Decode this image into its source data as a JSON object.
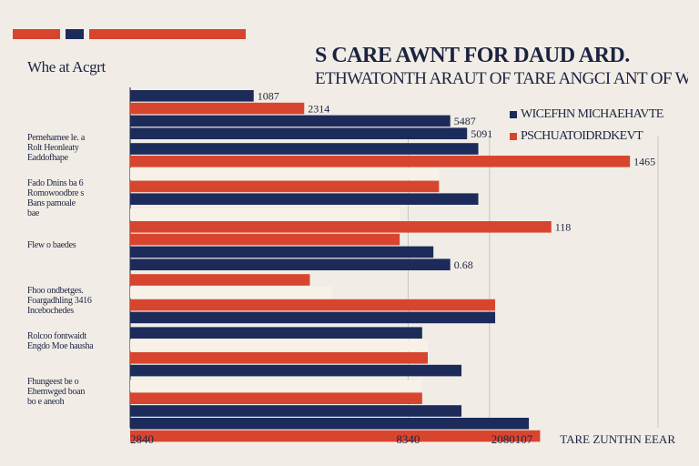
{
  "header": {
    "title": "S CARE AWNT FOR DAUD ARD.",
    "subtitle": "ETHWATONTH ARAUT OF TARE ANGCI ANT OF WEELL"
  },
  "colors": {
    "navy": "#1c2b5a",
    "red": "#d8452f",
    "cream": "#f8f1e8",
    "grid": "#c9c4bc",
    "text": "#1c2340"
  },
  "chart_data": {
    "type": "bar",
    "orientation": "horizontal",
    "title": "S CARE AWNT FOR DAUD ARD.",
    "subtitle": "ETHWATONTH ARAUT OF TARE ANGCI ANT OF WEELL",
    "ylabel": "Whe at Acgrt",
    "xlabel": "TARE ZUNTHN EEAR",
    "xlim": [
      0,
      100
    ],
    "x_ticks": [
      {
        "value": 0,
        "label": "2840"
      },
      {
        "value": 49.5,
        "label": "8340"
      },
      {
        "value": 68,
        "label": "2080107"
      }
    ],
    "legend": [
      {
        "label": "WICEFHN MICHAEHAVTE",
        "color": "#1c2b5a"
      },
      {
        "label": "PSCHUATOIDRDKEVT",
        "color": "#d8452f"
      }
    ],
    "categories": [
      "Pemehamee le. a\nRolt Heonleaty\nEaddofhape",
      "Fado Dnins ba 6\nRomowoodbre s\nBans pamoale\nbae",
      "Flew o baedes",
      "Fhoo ondbetges.\nFoargadhling 3416\nIncebochedes",
      "Rolcoo fontwaidt\nEngdo Moe hausha",
      "Fhungeest be o\nEhemwged boan\nbo e aneoh"
    ],
    "bars": [
      {
        "category": 0,
        "series": "navy",
        "value": 22,
        "label": "1087"
      },
      {
        "category": 0,
        "series": "red",
        "value": 31,
        "label": "2314"
      },
      {
        "category": 0,
        "series": "navy",
        "value": 57,
        "label": "5487"
      },
      {
        "category": 0,
        "series": "navy",
        "value": 60,
        "label": "5091"
      },
      {
        "category": 1,
        "series": "navy",
        "value": 62,
        "label": ""
      },
      {
        "category": 1,
        "series": "red",
        "value": 89,
        "label": "1465"
      },
      {
        "category": 1,
        "series": "cream",
        "value": 55,
        "label": ""
      },
      {
        "category": 1,
        "series": "red",
        "value": 55,
        "label": ""
      },
      {
        "category": 1,
        "series": "navy",
        "value": 62,
        "label": ""
      },
      {
        "category": 2,
        "series": "cream",
        "value": 48,
        "label": ""
      },
      {
        "category": 2,
        "series": "red",
        "value": 75,
        "label": "118"
      },
      {
        "category": 2,
        "series": "red",
        "value": 48,
        "label": ""
      },
      {
        "category": 2,
        "series": "navy",
        "value": 54,
        "label": ""
      },
      {
        "category": 2,
        "series": "navy",
        "value": 57,
        "label": "0.68"
      },
      {
        "category": 3,
        "series": "red",
        "value": 32,
        "label": ""
      },
      {
        "category": 3,
        "series": "cream",
        "value": 36,
        "label": ""
      },
      {
        "category": 3,
        "series": "red",
        "value": 65,
        "label": ""
      },
      {
        "category": 3,
        "series": "navy",
        "value": 65,
        "label": ""
      },
      {
        "category": 4,
        "series": "navy",
        "value": 52,
        "label": ""
      },
      {
        "category": 4,
        "series": "cream",
        "value": 53,
        "label": ""
      },
      {
        "category": 4,
        "series": "red",
        "value": 53,
        "label": ""
      },
      {
        "category": 4,
        "series": "navy",
        "value": 59,
        "label": ""
      },
      {
        "category": 5,
        "series": "cream",
        "value": 52,
        "label": ""
      },
      {
        "category": 5,
        "series": "red",
        "value": 52,
        "label": ""
      },
      {
        "category": 5,
        "series": "navy",
        "value": 59,
        "label": ""
      },
      {
        "category": 5,
        "series": "navy",
        "value": 71,
        "label": ""
      },
      {
        "category": 5,
        "series": "red",
        "value": 73,
        "label": ""
      }
    ]
  }
}
